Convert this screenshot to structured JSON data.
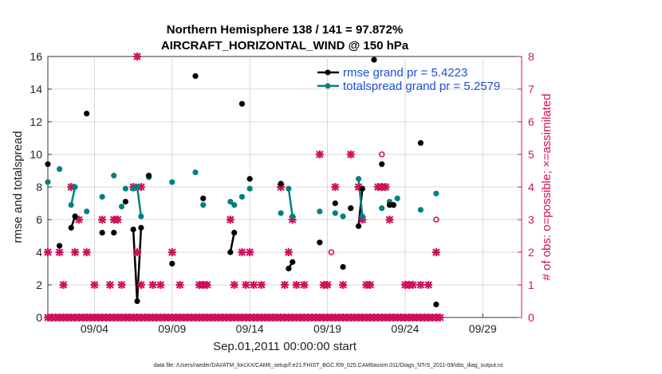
{
  "chart_data": {
    "type": "line",
    "title_line1": "Northern Hemisphere 138 / 141 = 97.872%",
    "title_line2": "AIRCRAFT_HORIZONTAL_WIND @ 150 hPa",
    "xlabel": "Sep.01,2011 00:00:00 start",
    "ylabel_left": "rmse and totalspread",
    "ylabel_right": "# of obs: o=possible; ×=assimilated",
    "footer": "data file: /Users/raeder/DAI/ATM_forcXX/CAM6_setup/f.e21.FHIST_BGC.f09_025.CAM6assim.011/Diags_NTrS_2011-09/obs_diag_output.nc",
    "xlim": [
      0,
      30.5
    ],
    "ylim_left": [
      0,
      16
    ],
    "ylim_right": [
      0,
      8
    ],
    "xticks": [
      3,
      8,
      13,
      18,
      23,
      28
    ],
    "xtick_labels": [
      "09/04",
      "09/09",
      "09/14",
      "09/19",
      "09/24",
      "09/29"
    ],
    "yticks_left": [
      0,
      2,
      4,
      6,
      8,
      10,
      12,
      14,
      16
    ],
    "yticks_right": [
      0,
      1,
      2,
      3,
      4,
      5,
      6,
      7,
      8
    ],
    "colors": {
      "rmse": "#000000",
      "spread": "#008080",
      "obs": "#d0105a",
      "legend_text": "#1a4fd6"
    },
    "series": [
      {
        "name": "rmse grand pr = 5.4223",
        "color": "#000000",
        "points": [
          [
            0,
            9.4
          ],
          [
            0.75,
            4.4
          ],
          [
            1.5,
            5.5
          ],
          [
            1.75,
            6.2
          ],
          [
            2.5,
            12.5
          ],
          [
            3.5,
            5.2
          ],
          [
            4.25,
            5.2
          ],
          [
            5,
            7.1
          ],
          [
            5.5,
            5.4
          ],
          [
            5.75,
            1.0
          ],
          [
            6,
            5.5
          ],
          [
            6.5,
            8.7
          ],
          [
            8,
            3.3
          ],
          [
            9.5,
            14.8
          ],
          [
            10,
            7.3
          ],
          [
            11.75,
            4.0
          ],
          [
            12,
            5.2
          ],
          [
            12.5,
            13.1
          ],
          [
            13,
            8.5
          ],
          [
            15,
            8.2
          ],
          [
            15.5,
            3.0
          ],
          [
            15.75,
            3.4
          ],
          [
            17.5,
            4.6
          ],
          [
            18.5,
            7.0
          ],
          [
            19,
            3.1
          ],
          [
            19.5,
            6.7
          ],
          [
            20,
            5.6
          ],
          [
            20.25,
            7.9
          ],
          [
            21,
            15.8
          ],
          [
            21.5,
            9.4
          ],
          [
            22,
            6.9
          ],
          [
            22.25,
            6.9
          ],
          [
            24,
            10.7
          ],
          [
            25,
            0.8
          ]
        ],
        "segments": [
          [
            1.5,
            1.75
          ],
          [
            5.5,
            5.75,
            6
          ],
          [
            11.75,
            12
          ],
          [
            15.5,
            15.75
          ],
          [
            20,
            20.25
          ],
          [
            22,
            22.25
          ]
        ]
      },
      {
        "name": "totalspread grand pr = 5.2579",
        "color": "#008080",
        "points": [
          [
            0,
            8.3
          ],
          [
            0.75,
            9.1
          ],
          [
            1.5,
            6.9
          ],
          [
            1.75,
            8.0
          ],
          [
            2.5,
            6.5
          ],
          [
            3.5,
            7.4
          ],
          [
            4.25,
            8.7
          ],
          [
            4.75,
            6.8
          ],
          [
            5,
            7.9
          ],
          [
            5.5,
            7.9
          ],
          [
            5.75,
            8.0
          ],
          [
            6,
            6.2
          ],
          [
            6.5,
            8.6
          ],
          [
            8,
            8.3
          ],
          [
            9.5,
            8.9
          ],
          [
            10,
            6.9
          ],
          [
            11.75,
            7.1
          ],
          [
            12,
            6.9
          ],
          [
            12.5,
            7.4
          ],
          [
            13,
            7.9
          ],
          [
            15,
            6.4
          ],
          [
            15.5,
            7.9
          ],
          [
            15.75,
            6.2
          ],
          [
            17.5,
            6.5
          ],
          [
            18.5,
            6.4
          ],
          [
            19,
            6.2
          ],
          [
            19.5,
            6.7
          ],
          [
            20,
            8.5
          ],
          [
            20.25,
            6.2
          ],
          [
            21.5,
            6.7
          ],
          [
            22,
            7.1
          ],
          [
            22.25,
            6.9
          ],
          [
            22.5,
            7.3
          ],
          [
            24,
            6.6
          ],
          [
            25,
            7.6
          ]
        ],
        "segments": [
          [
            1.5,
            1.75
          ],
          [
            5.5,
            5.75,
            6
          ],
          [
            11.75,
            12
          ],
          [
            15.5,
            15.75
          ],
          [
            20,
            20.25
          ],
          [
            22,
            22.25
          ]
        ]
      },
      {
        "name": "obs assimilated",
        "color": "#d0105a",
        "marker": "x",
        "points": [
          [
            0,
            2
          ],
          [
            0,
            0
          ],
          [
            0.25,
            0
          ],
          [
            0.5,
            0
          ],
          [
            0.75,
            2
          ],
          [
            0.75,
            0
          ],
          [
            1,
            1
          ],
          [
            1,
            0
          ],
          [
            1.25,
            0
          ],
          [
            1.5,
            4
          ],
          [
            1.5,
            0
          ],
          [
            1.75,
            2
          ],
          [
            1.75,
            0
          ],
          [
            2,
            3
          ],
          [
            2,
            0
          ],
          [
            2.25,
            0
          ],
          [
            2.5,
            2
          ],
          [
            2.5,
            0
          ],
          [
            2.75,
            0
          ],
          [
            3,
            1
          ],
          [
            3,
            0
          ],
          [
            3.25,
            0
          ],
          [
            3.5,
            3
          ],
          [
            3.5,
            0
          ],
          [
            3.75,
            0
          ],
          [
            4,
            1
          ],
          [
            4,
            0
          ],
          [
            4.25,
            3
          ],
          [
            4.25,
            0
          ],
          [
            4.5,
            3
          ],
          [
            4.5,
            0
          ],
          [
            4.75,
            1
          ],
          [
            4.75,
            0
          ],
          [
            5,
            0
          ],
          [
            5.25,
            0
          ],
          [
            5.5,
            4
          ],
          [
            5.5,
            0
          ],
          [
            5.75,
            2
          ],
          [
            5.75,
            8
          ],
          [
            5.75,
            0
          ],
          [
            6,
            4
          ],
          [
            6,
            1
          ],
          [
            6,
            0
          ],
          [
            6.25,
            0
          ],
          [
            6.5,
            0
          ],
          [
            6.75,
            1
          ],
          [
            6.75,
            0
          ],
          [
            7,
            0
          ],
          [
            7.25,
            1
          ],
          [
            7.25,
            0
          ],
          [
            7.5,
            0
          ],
          [
            7.75,
            0
          ],
          [
            8,
            2
          ],
          [
            8,
            0
          ],
          [
            8.25,
            0
          ],
          [
            8.5,
            1
          ],
          [
            8.5,
            0
          ],
          [
            8.75,
            0
          ],
          [
            9,
            0
          ],
          [
            9.25,
            0
          ],
          [
            9.5,
            0
          ],
          [
            9.75,
            1
          ],
          [
            9.75,
            0
          ],
          [
            10,
            1
          ],
          [
            10,
            0
          ],
          [
            10.25,
            1
          ],
          [
            10.25,
            0
          ],
          [
            10.5,
            0
          ],
          [
            10.75,
            0
          ],
          [
            11,
            0
          ],
          [
            11.25,
            0
          ],
          [
            11.5,
            0
          ],
          [
            11.75,
            3
          ],
          [
            11.75,
            0
          ],
          [
            12,
            1
          ],
          [
            12,
            0
          ],
          [
            12.25,
            0
          ],
          [
            12.5,
            2
          ],
          [
            12.5,
            0
          ],
          [
            12.75,
            1
          ],
          [
            12.75,
            0
          ],
          [
            13,
            2
          ],
          [
            13,
            0
          ],
          [
            13.25,
            1
          ],
          [
            13.25,
            0
          ],
          [
            13.5,
            0
          ],
          [
            13.75,
            1
          ],
          [
            13.75,
            0
          ],
          [
            14,
            0
          ],
          [
            14.25,
            0
          ],
          [
            14.5,
            0
          ],
          [
            14.75,
            0
          ],
          [
            15,
            4
          ],
          [
            15,
            0
          ],
          [
            15.25,
            1
          ],
          [
            15.25,
            0
          ],
          [
            15.5,
            2
          ],
          [
            15.5,
            0
          ],
          [
            15.75,
            3
          ],
          [
            15.75,
            0
          ],
          [
            16,
            1
          ],
          [
            16,
            0
          ],
          [
            16.25,
            0
          ],
          [
            16.5,
            1
          ],
          [
            16.5,
            0
          ],
          [
            16.75,
            0
          ],
          [
            17,
            0
          ],
          [
            17.25,
            0
          ],
          [
            17.5,
            5
          ],
          [
            17.5,
            0
          ],
          [
            17.75,
            1
          ],
          [
            17.75,
            0
          ],
          [
            18,
            1
          ],
          [
            18,
            0
          ],
          [
            18.25,
            0
          ],
          [
            18.5,
            4
          ],
          [
            18.5,
            0
          ],
          [
            18.75,
            0
          ],
          [
            19,
            1
          ],
          [
            19,
            0
          ],
          [
            19.25,
            0
          ],
          [
            19.5,
            5
          ],
          [
            19.5,
            0
          ],
          [
            19.75,
            0
          ],
          [
            20,
            4
          ],
          [
            20,
            0
          ],
          [
            20.25,
            3
          ],
          [
            20.25,
            0
          ],
          [
            20.5,
            1
          ],
          [
            20.5,
            0
          ],
          [
            20.75,
            1
          ],
          [
            20.75,
            0
          ],
          [
            21,
            0
          ],
          [
            21.25,
            4
          ],
          [
            21.25,
            0
          ],
          [
            21.5,
            4
          ],
          [
            21.5,
            0
          ],
          [
            21.75,
            4
          ],
          [
            21.75,
            0
          ],
          [
            22,
            3
          ],
          [
            22,
            0
          ],
          [
            22.25,
            0
          ],
          [
            22.5,
            0
          ],
          [
            22.75,
            0
          ],
          [
            23,
            1
          ],
          [
            23,
            0
          ],
          [
            23.25,
            1
          ],
          [
            23.25,
            0
          ],
          [
            23.5,
            1
          ],
          [
            23.5,
            0
          ],
          [
            23.75,
            0
          ],
          [
            24,
            1
          ],
          [
            24,
            0
          ],
          [
            24.25,
            0
          ],
          [
            24.5,
            1
          ],
          [
            24.5,
            0
          ],
          [
            24.75,
            0
          ],
          [
            25,
            2
          ],
          [
            25,
            0
          ],
          [
            25.25,
            0
          ]
        ]
      },
      {
        "name": "obs possible",
        "color": "#d0105a",
        "marker": "o",
        "points": [
          [
            18.25,
            2
          ],
          [
            21.5,
            5
          ],
          [
            25,
            3
          ]
        ]
      }
    ],
    "legend_position": "top-right"
  }
}
